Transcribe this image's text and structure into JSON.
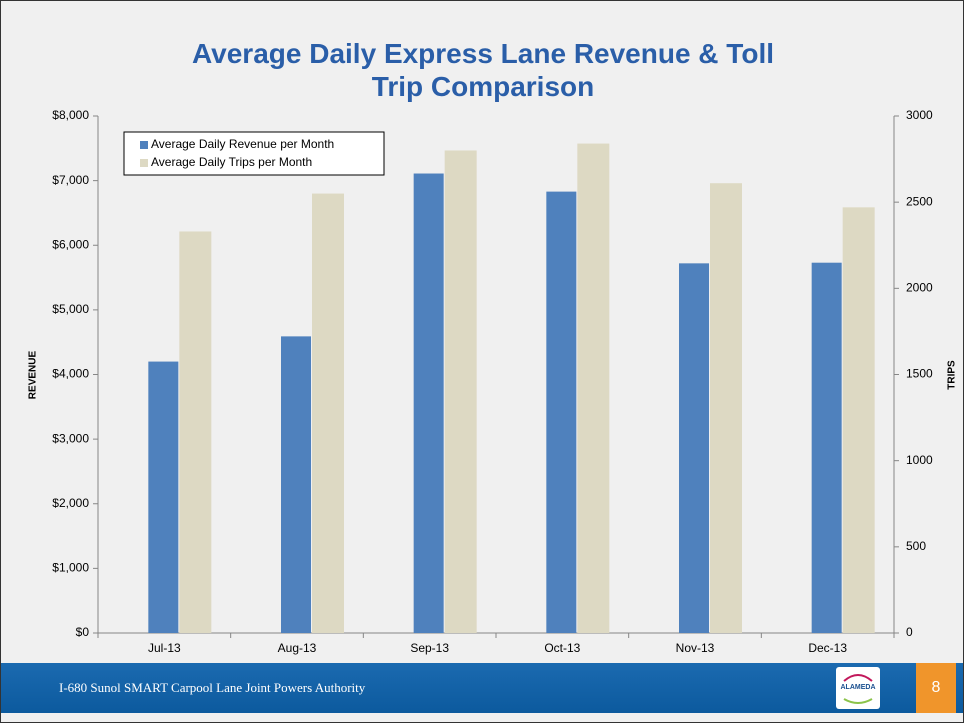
{
  "chart_data": {
    "type": "bar",
    "title": "Average Daily Express Lane Revenue & Toll Trip Comparison",
    "y_label": "REVENUE",
    "y2_label": "TRIPS",
    "categories": [
      "Jul-13",
      "Aug-13",
      "Sep-13",
      "Oct-13",
      "Nov-13",
      "Dec-13"
    ],
    "series": [
      {
        "name": "Average Daily Revenue per Month",
        "color": "#4f81bd",
        "values": [
          4200,
          4590,
          7110,
          6830,
          5720,
          5730
        ]
      },
      {
        "name": "Average Daily Trips per Month",
        "color": "#ddd9c3",
        "axis": "y2",
        "values": [
          2330,
          2550,
          2800,
          2840,
          2610,
          2470
        ]
      }
    ],
    "ylim": [
      0,
      8000
    ],
    "yticks": [
      {
        "value": 0,
        "label": "$0"
      },
      {
        "value": 1000,
        "label": "$1,000"
      },
      {
        "value": 2000,
        "label": "$2,000"
      },
      {
        "value": 3000,
        "label": "$3,000"
      },
      {
        "value": 4000,
        "label": "$4,000"
      },
      {
        "value": 5000,
        "label": "$5,000"
      },
      {
        "value": 6000,
        "label": "$6,000"
      },
      {
        "value": 7000,
        "label": "$7,000"
      },
      {
        "value": 8000,
        "label": "$8,000"
      }
    ],
    "y2lim": [
      0,
      3000
    ],
    "y2ticks": [
      0,
      500,
      1000,
      1500,
      2000,
      2500,
      3000
    ],
    "grid": false,
    "legend": "top-left"
  },
  "footer": {
    "text": "I-680 Sunol SMART Carpool Lane Joint Powers Authority",
    "logo": "ALAMEDA",
    "page": "8"
  }
}
